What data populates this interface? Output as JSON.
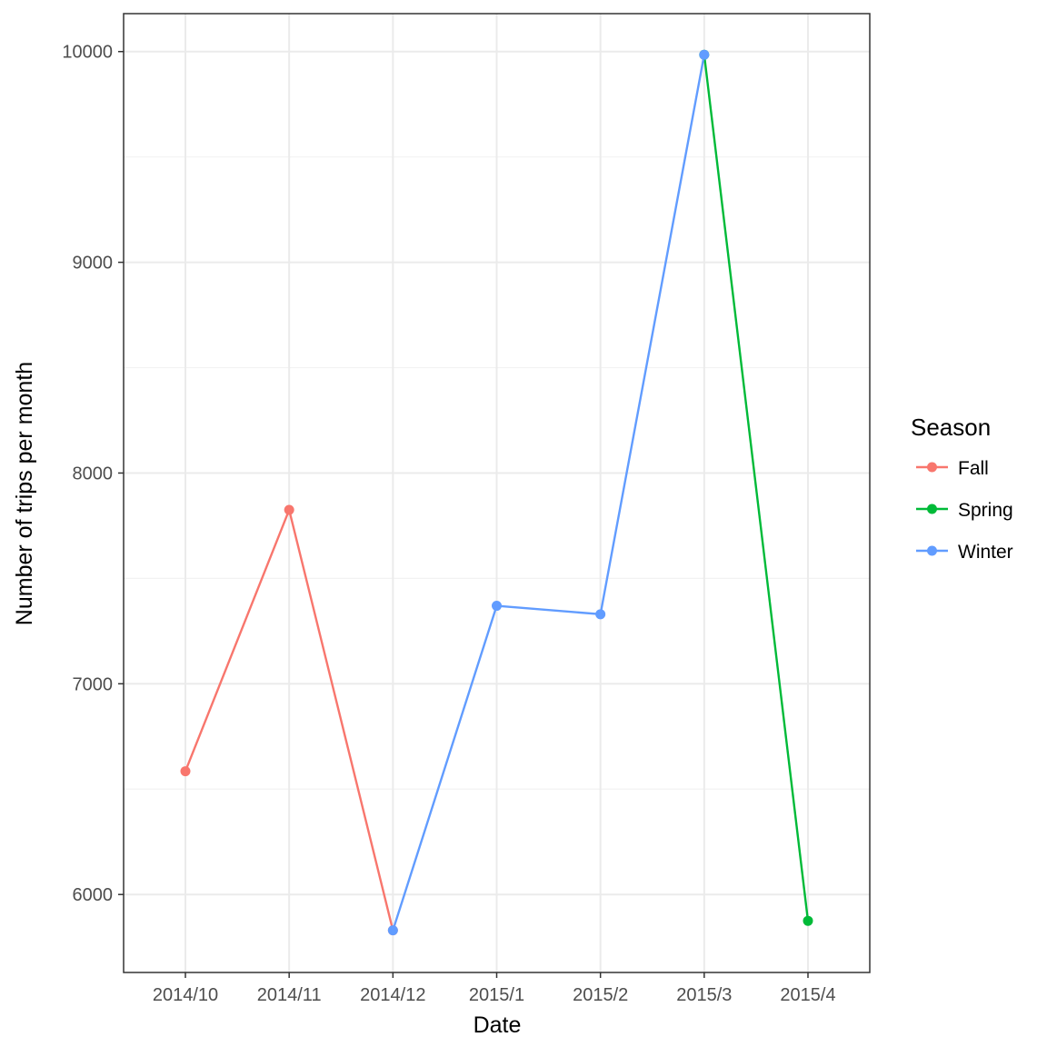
{
  "chart_data": {
    "type": "line",
    "title": "",
    "xlabel": "Date",
    "ylabel": "Number of trips per month",
    "categories": [
      "2014/10",
      "2014/11",
      "2014/12",
      "2015/1",
      "2015/2",
      "2015/3",
      "2015/4"
    ],
    "ylim": [
      5630,
      10180
    ],
    "y_ticks": [
      6000,
      7000,
      8000,
      9000,
      10000
    ],
    "grid": true,
    "legend": {
      "title": "Season",
      "position": "right"
    },
    "series": [
      {
        "name": "Fall",
        "color": "#F8766D",
        "points": [
          {
            "x": "2014/10",
            "y": 6585
          },
          {
            "x": "2014/11",
            "y": 7825
          },
          {
            "x": "2014/12",
            "y": 5830
          }
        ]
      },
      {
        "name": "Spring",
        "color": "#00BA38",
        "points": [
          {
            "x": "2015/3",
            "y": 9985
          },
          {
            "x": "2015/4",
            "y": 5875
          }
        ]
      },
      {
        "name": "Winter",
        "color": "#619CFF",
        "points": [
          {
            "x": "2014/12",
            "y": 5830
          },
          {
            "x": "2015/1",
            "y": 7370
          },
          {
            "x": "2015/2",
            "y": 7330
          },
          {
            "x": "2015/3",
            "y": 9985
          }
        ]
      }
    ]
  }
}
